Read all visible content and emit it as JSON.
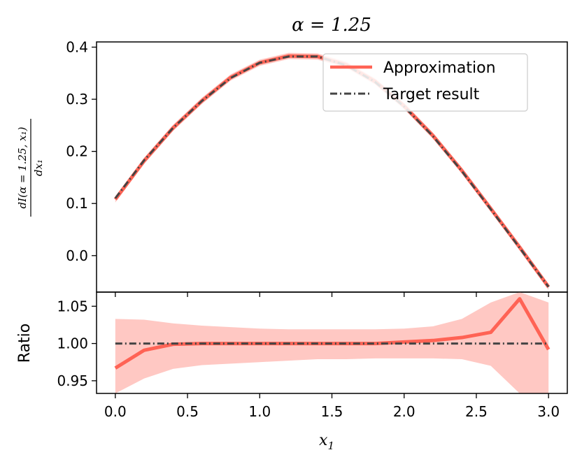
{
  "chart_data": {
    "type": "line",
    "title": "α = 1.25",
    "xlabel": "x",
    "xlabel_sub": "1",
    "x": [
      0.0,
      0.2,
      0.4,
      0.6,
      0.8,
      1.0,
      1.2,
      1.4,
      1.6,
      1.8,
      2.0,
      2.2,
      2.4,
      2.6,
      2.8,
      3.0
    ],
    "xlim": [
      -0.13,
      3.13
    ],
    "xticks": [
      "0.0",
      "0.5",
      "1.0",
      "1.5",
      "2.0",
      "2.5",
      "3.0"
    ],
    "xtick_values": [
      0.0,
      0.5,
      1.0,
      1.5,
      2.0,
      2.5,
      3.0
    ],
    "legend": {
      "position": "upper-right",
      "entries": [
        "Approximation",
        "Target result"
      ]
    },
    "panels": [
      {
        "name": "main",
        "ylabel": "dI(α = 1.25, x₁) / dx₁",
        "ylabel_num": "dI(α = 1.25, x₁)",
        "ylabel_den": "dx₁",
        "ylim": [
          -0.07,
          0.41
        ],
        "yticks": [
          "0.0",
          "0.1",
          "0.2",
          "0.3",
          "0.4"
        ],
        "ytick_values": [
          0.0,
          0.1,
          0.2,
          0.3,
          0.4
        ],
        "series": [
          {
            "name": "Approximation",
            "color": "#ff6355",
            "values": [
              0.108,
              0.182,
              0.245,
              0.297,
              0.342,
              0.37,
              0.383,
              0.382,
              0.366,
              0.334,
              0.287,
              0.23,
              0.163,
              0.09,
              0.016,
              -0.06
            ],
            "band": [
              0.006,
              0.006,
              0.006,
              0.006,
              0.006,
              0.006,
              0.006,
              0.006,
              0.006,
              0.006,
              0.006,
              0.006,
              0.006,
              0.006,
              0.006,
              0.006
            ]
          },
          {
            "name": "Target result",
            "color": "#444444",
            "values": [
              0.11,
              0.183,
              0.245,
              0.297,
              0.341,
              0.37,
              0.382,
              0.382,
              0.365,
              0.333,
              0.286,
              0.229,
              0.162,
              0.089,
              0.015,
              -0.06
            ]
          }
        ]
      },
      {
        "name": "ratio",
        "ylabel": "Ratio",
        "ylim": [
          0.933,
          1.069
        ],
        "yticks": [
          "0.95",
          "1.00",
          "1.05"
        ],
        "ytick_values": [
          0.95,
          1.0,
          1.05
        ],
        "series": [
          {
            "name": "Approximation",
            "color": "#ff6355",
            "values": [
              0.967,
              0.991,
              0.999,
              1.0,
              1.0,
              1.0,
              1.0,
              1.0,
              1.0,
              1.0,
              1.002,
              1.004,
              1.008,
              1.015,
              1.06,
              0.992
            ],
            "band_lower": [
              0.933,
              0.953,
              0.966,
              0.971,
              0.973,
              0.975,
              0.977,
              0.979,
              0.979,
              0.98,
              0.98,
              0.98,
              0.979,
              0.97,
              0.933,
              0.933
            ],
            "band_upper": [
              1.033,
              1.032,
              1.027,
              1.024,
              1.022,
              1.02,
              1.019,
              1.019,
              1.019,
              1.019,
              1.02,
              1.023,
              1.033,
              1.055,
              1.069,
              1.055
            ]
          },
          {
            "name": "Target result",
            "color": "#444444",
            "values": [
              1.0,
              1.0,
              1.0,
              1.0,
              1.0,
              1.0,
              1.0,
              1.0,
              1.0,
              1.0,
              1.0,
              1.0,
              1.0,
              1.0,
              1.0,
              1.0
            ]
          }
        ]
      }
    ]
  },
  "colors": {
    "approximation": "#ff6355",
    "approximation_band": "#ffc8c3",
    "target": "#444444",
    "axes": "#000000"
  }
}
